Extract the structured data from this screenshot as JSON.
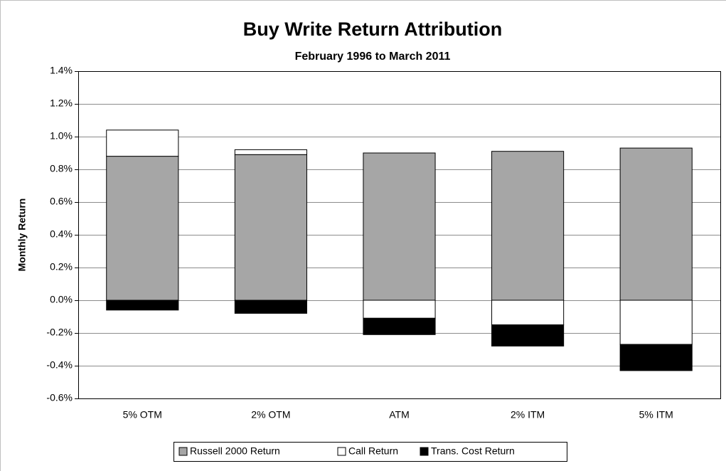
{
  "chart_data": {
    "type": "bar",
    "stacked": true,
    "title": "Buy Write Return Attribution",
    "subtitle": "February 1996 to March 2011",
    "y_label": "Monthly Return",
    "categories": [
      "5% OTM",
      "2% OTM",
      "ATM",
      "2% ITM",
      "5% ITM"
    ],
    "series": [
      {
        "name": "Russell 2000 Return",
        "color": "#a6a6a6",
        "values": [
          0.88,
          0.89,
          0.9,
          0.91,
          0.93
        ]
      },
      {
        "name": "Call Return",
        "color": "#ffffff",
        "values": [
          0.16,
          0.03,
          -0.11,
          -0.15,
          -0.27
        ]
      },
      {
        "name": "Trans. Cost Return",
        "color": "#000000",
        "values": [
          -0.06,
          -0.08,
          -0.1,
          -0.13,
          -0.16
        ]
      }
    ],
    "ylim": [
      -0.6,
      1.4
    ],
    "yticks": [
      {
        "value": -0.6,
        "label": "-0.6%"
      },
      {
        "value": -0.4,
        "label": "-0.4%"
      },
      {
        "value": -0.2,
        "label": "-0.2%"
      },
      {
        "value": 0,
        "label": "0.0%"
      },
      {
        "value": 0.2,
        "label": "0.2%"
      },
      {
        "value": 0.4,
        "label": "0.4%"
      },
      {
        "value": 0.6,
        "label": "0.6%"
      },
      {
        "value": 0.8,
        "label": "0.8%"
      },
      {
        "value": 1.0,
        "label": "1.0%"
      },
      {
        "value": 1.2,
        "label": "1.2%"
      },
      {
        "value": 1.4,
        "label": "1.4%"
      }
    ],
    "grid": true,
    "legend": "bottom"
  }
}
